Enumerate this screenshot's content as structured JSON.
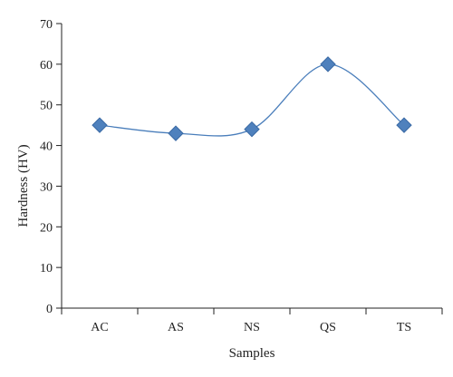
{
  "chart_data": {
    "type": "line",
    "categories": [
      "AC",
      "AS",
      "NS",
      "QS",
      "TS"
    ],
    "series": [
      {
        "values": [
          45,
          43,
          44,
          60,
          45
        ]
      }
    ],
    "xlabel": "Samples",
    "ylabel": "Hardness (HV)",
    "ylim": [
      0,
      70
    ],
    "yticks": [
      0,
      10,
      20,
      30,
      40,
      50,
      60,
      70
    ],
    "grid": false,
    "legend": "none",
    "line_style": "smooth",
    "marker": "diamond",
    "colors": {
      "line": "#4a7ebb",
      "marker": "#4f81bd",
      "marker_edge": "#3a6aa5",
      "axis": "#222222"
    }
  }
}
